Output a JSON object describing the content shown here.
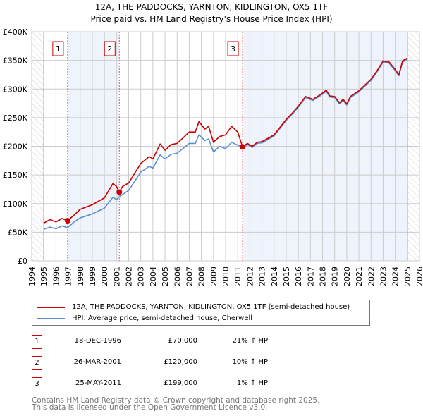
{
  "chart_data": {
    "type": "line",
    "title": "12A, THE PADDOCKS, YARNTON, KIDLINGTON, OX5 1TF",
    "subtitle": "Price paid vs. HM Land Registry's House Price Index (HPI)",
    "xlim": [
      1994,
      2026
    ],
    "ylim": [
      0,
      400000
    ],
    "x_ticks": [
      "1994",
      "1995",
      "1996",
      "1997",
      "1998",
      "1999",
      "2000",
      "2001",
      "2002",
      "2003",
      "2004",
      "2005",
      "2006",
      "2007",
      "2008",
      "2009",
      "2010",
      "2011",
      "2012",
      "2013",
      "2014",
      "2015",
      "2016",
      "2017",
      "2018",
      "2019",
      "2020",
      "2021",
      "2022",
      "2023",
      "2024",
      "2025",
      "2026"
    ],
    "y_ticks": [
      {
        "v": 0,
        "label": "£0"
      },
      {
        "v": 50000,
        "label": "£50K"
      },
      {
        "v": 100000,
        "label": "£100K"
      },
      {
        "v": 150000,
        "label": "£150K"
      },
      {
        "v": 200000,
        "label": "£200K"
      },
      {
        "v": 250000,
        "label": "£250K"
      },
      {
        "v": 300000,
        "label": "£300K"
      },
      {
        "v": 350000,
        "label": "£350K"
      },
      {
        "v": 400000,
        "label": "£400K"
      }
    ],
    "grid": true,
    "data_range": [
      1995,
      2025
    ],
    "series": [
      {
        "name": "12A, THE PADDOCKS, YARNTON, KIDLINGTON, OX5 1TF (semi-detached house)",
        "color": "#cc0000",
        "x": [
          1995,
          1995.5,
          1996,
          1996.5,
          1996.96,
          1997.5,
          1998,
          1999,
          2000,
          2000.7,
          2001,
          2001.23,
          2001.5,
          2002,
          2003,
          2003.7,
          2004,
          2004.6,
          2005,
          2005.5,
          2006,
          2007,
          2007.5,
          2007.8,
          2008.3,
          2008.6,
          2009,
          2009.5,
          2010,
          2010.5,
          2011,
          2011.4,
          2011.8,
          2012.2,
          2012.6,
          2013,
          2014,
          2015,
          2015.5,
          2016,
          2016.6,
          2017.2,
          2017.8,
          2018,
          2018.3,
          2018.6,
          2019,
          2019.4,
          2019.7,
          2020,
          2020.3,
          2021,
          2022,
          2022.5,
          2023,
          2023.5,
          2024,
          2024.3,
          2024.6,
          2025
        ],
        "y": [
          66000,
          72000,
          68000,
          74000,
          70000,
          80000,
          90000,
          98000,
          110000,
          135000,
          130000,
          120000,
          130000,
          136000,
          170000,
          182000,
          178000,
          204000,
          193000,
          203000,
          205000,
          225000,
          225000,
          243000,
          230000,
          235000,
          207000,
          217000,
          220000,
          235000,
          225000,
          199000,
          205000,
          200000,
          207000,
          208000,
          220000,
          247000,
          258000,
          270000,
          287000,
          282000,
          290000,
          293000,
          298000,
          288000,
          287000,
          276000,
          282000,
          274000,
          287000,
          297000,
          317000,
          332000,
          349000,
          347000,
          334000,
          325000,
          349000,
          354000
        ]
      },
      {
        "name": "HPI: Average price, semi-detached house, Cherwell",
        "color": "#5b8fd0",
        "x": [
          1995,
          1995.5,
          1996,
          1996.5,
          1996.96,
          1997.5,
          1998,
          1999,
          2000,
          2000.7,
          2001,
          2001.23,
          2001.5,
          2002,
          2003,
          2003.7,
          2004,
          2004.6,
          2005,
          2005.5,
          2006,
          2007,
          2007.5,
          2007.8,
          2008.3,
          2008.6,
          2009,
          2009.5,
          2010,
          2010.5,
          2011,
          2011.4,
          2011.8,
          2012.2,
          2012.6,
          2013,
          2014,
          2015,
          2015.5,
          2016,
          2016.6,
          2017.2,
          2017.8,
          2018,
          2018.3,
          2018.6,
          2019,
          2019.4,
          2019.7,
          2020,
          2020.3,
          2021,
          2022,
          2022.5,
          2023,
          2023.5,
          2024,
          2024.3,
          2024.6,
          2025
        ],
        "y": [
          55000,
          59000,
          56000,
          61000,
          58000,
          68000,
          75000,
          82000,
          92000,
          111000,
          107000,
          112000,
          116000,
          123000,
          155000,
          165000,
          162000,
          185000,
          178000,
          186000,
          188000,
          205000,
          205000,
          220000,
          210000,
          213000,
          190000,
          200000,
          196000,
          207000,
          202000,
          197000,
          203000,
          198000,
          205000,
          206000,
          218000,
          245000,
          256000,
          268000,
          285000,
          280000,
          288000,
          291000,
          296000,
          286000,
          285000,
          274000,
          280000,
          272000,
          285000,
          295000,
          315000,
          330000,
          347000,
          345000,
          332000,
          323000,
          347000,
          352000
        ]
      }
    ],
    "sales": [
      {
        "n": "1",
        "x": 1996.96,
        "y": 70000,
        "date": "18-DEC-1996",
        "price": "£70,000",
        "hpi": "21% ↑ HPI"
      },
      {
        "n": "2",
        "x": 2001.23,
        "y": 120000,
        "date": "26-MAR-2001",
        "price": "£120,000",
        "hpi": "10% ↑ HPI"
      },
      {
        "n": "3",
        "x": 2011.4,
        "y": 199000,
        "date": "25-MAY-2011",
        "price": "£199,000",
        "hpi": "1% ↑ HPI"
      }
    ],
    "shaded_periods": [
      [
        1996.96,
        2001.23
      ],
      [
        2011.4,
        2025
      ]
    ],
    "colors": {
      "shade": "#eef3fc",
      "grid": "#cccccc",
      "marker": "#cc0000"
    }
  },
  "legend": {
    "property": "12A, THE PADDOCKS, YARNTON, KIDLINGTON, OX5 1TF (semi-detached house)",
    "hpi": "HPI: Average price, semi-detached house, Cherwell"
  },
  "footer": {
    "line1": "Contains HM Land Registry data © Crown copyright and database right 2025.",
    "line2": "This data is licensed under the Open Government Licence v3.0."
  }
}
